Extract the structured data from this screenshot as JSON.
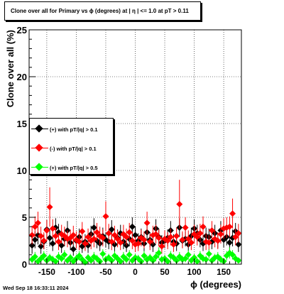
{
  "title": "Clone  over all for Primary vs ϕ (degrees) at |  η | <= 1.0 at pT > 0.11",
  "footer": "Wed Sep 18 16:33:11 2024",
  "chart_data": {
    "type": "scatter",
    "xlabel": "ϕ (degrees)",
    "ylabel": "Clone  over all (%)",
    "xlim": [
      -180,
      180
    ],
    "ylim": [
      0,
      25
    ],
    "x_ticks": [
      -150,
      -100,
      -50,
      0,
      50,
      100,
      150
    ],
    "y_ticks": [
      0,
      5,
      10,
      15,
      20,
      25
    ],
    "grid": true,
    "legend_position": "left-middle",
    "series": [
      {
        "name": "(+) with pT/|q| > 0.1",
        "color": "#000000",
        "x": [
          -175,
          -170,
          -165,
          -160,
          -155,
          -150,
          -145,
          -140,
          -135,
          -130,
          -125,
          -120,
          -115,
          -110,
          -105,
          -100,
          -95,
          -90,
          -85,
          -80,
          -75,
          -70,
          -65,
          -60,
          -55,
          -50,
          -45,
          -40,
          -35,
          -30,
          -25,
          -20,
          -15,
          -10,
          -5,
          0,
          5,
          10,
          15,
          20,
          25,
          30,
          35,
          40,
          45,
          50,
          55,
          60,
          65,
          70,
          75,
          80,
          85,
          90,
          95,
          100,
          105,
          110,
          115,
          120,
          125,
          130,
          135,
          140,
          145,
          150,
          155,
          160,
          165,
          170,
          175
        ],
        "y": [
          2.0,
          2.6,
          3.1,
          1.9,
          2.4,
          3.7,
          2.8,
          2.2,
          3.9,
          3.4,
          2.0,
          2.7,
          3.6,
          2.3,
          1.6,
          2.5,
          2.9,
          1.9,
          2.4,
          2.0,
          3.2,
          3.9,
          2.5,
          2.2,
          3.0,
          2.6,
          2.4,
          3.7,
          2.1,
          2.8,
          3.3,
          2.4,
          2.0,
          2.7,
          4.0,
          3.1,
          2.5,
          2.9,
          2.2,
          3.4,
          2.6,
          2.1,
          3.8,
          2.9,
          2.3,
          2.5,
          2.8,
          3.6,
          2.4,
          2.2,
          3.9,
          2.5,
          2.7,
          2.1,
          3.0,
          3.8,
          3.3,
          2.6,
          2.2,
          3.0,
          2.9,
          2.4,
          3.3,
          2.5,
          3.6,
          2.6,
          2.9,
          2.3,
          2.8,
          3.5,
          2.1
        ],
        "err": [
          0.9,
          0.9,
          1.0,
          0.8,
          0.8,
          1.0,
          0.9,
          0.8,
          1.0,
          0.9,
          0.8,
          0.8,
          1.0,
          0.8,
          0.7,
          0.8,
          0.9,
          0.7,
          0.8,
          0.8,
          0.9,
          1.0,
          0.8,
          0.8,
          0.9,
          0.8,
          0.8,
          1.0,
          0.8,
          0.9,
          0.9,
          0.8,
          0.7,
          0.8,
          1.0,
          0.9,
          0.8,
          0.9,
          0.8,
          0.9,
          0.8,
          0.8,
          1.0,
          0.9,
          0.8,
          0.8,
          0.9,
          1.0,
          0.8,
          0.8,
          1.0,
          0.8,
          0.8,
          0.7,
          0.9,
          1.0,
          0.9,
          0.8,
          0.8,
          0.9,
          0.9,
          0.8,
          0.9,
          0.8,
          1.0,
          0.8,
          0.9,
          0.8,
          0.9,
          0.9,
          0.8
        ]
      },
      {
        "name": "(-) with pT/|q| > 0.1",
        "color": "#ff0000",
        "x": [
          -175,
          -170,
          -165,
          -160,
          -155,
          -150,
          -145,
          -140,
          -135,
          -130,
          -125,
          -120,
          -115,
          -110,
          -105,
          -100,
          -95,
          -90,
          -85,
          -80,
          -75,
          -70,
          -65,
          -60,
          -55,
          -50,
          -45,
          -40,
          -35,
          -30,
          -25,
          -20,
          -15,
          -10,
          -5,
          0,
          5,
          10,
          15,
          20,
          25,
          30,
          35,
          40,
          45,
          50,
          55,
          60,
          65,
          70,
          75,
          80,
          85,
          90,
          95,
          100,
          105,
          110,
          115,
          120,
          125,
          130,
          135,
          140,
          145,
          150,
          155,
          160,
          165,
          170,
          175
        ],
        "y": [
          3.1,
          4.0,
          4.4,
          3.0,
          2.5,
          3.6,
          6.1,
          3.8,
          3.0,
          2.4,
          3.2,
          3.0,
          2.7,
          2.8,
          3.1,
          2.6,
          2.4,
          3.5,
          2.2,
          2.9,
          2.5,
          2.7,
          3.4,
          3.0,
          2.8,
          5.1,
          3.3,
          2.4,
          3.1,
          2.7,
          2.3,
          3.2,
          2.9,
          3.4,
          2.5,
          2.1,
          2.2,
          2.8,
          2.6,
          4.4,
          2.4,
          3.1,
          3.2,
          2.8,
          1.9,
          2.7,
          2.5,
          2.9,
          2.1,
          3.0,
          6.4,
          2.6,
          3.9,
          2.7,
          2.3,
          3.2,
          2.9,
          3.3,
          4.0,
          2.4,
          2.3,
          3.6,
          2.7,
          2.5,
          3.2,
          3.8,
          3.9,
          4.0,
          5.4,
          2.9,
          3.3
        ],
        "err": [
          1.0,
          1.1,
          1.2,
          1.0,
          0.9,
          1.1,
          2.1,
          1.0,
          0.9,
          0.9,
          1.0,
          1.0,
          0.9,
          0.9,
          1.0,
          0.9,
          0.9,
          1.0,
          0.8,
          0.9,
          0.9,
          0.9,
          1.0,
          1.0,
          0.9,
          1.6,
          1.0,
          0.9,
          1.0,
          0.9,
          0.8,
          1.0,
          0.9,
          1.0,
          0.9,
          0.8,
          0.8,
          0.9,
          0.9,
          1.2,
          0.9,
          1.0,
          1.0,
          0.9,
          0.8,
          0.9,
          0.9,
          0.9,
          0.8,
          0.9,
          2.6,
          0.9,
          1.1,
          0.9,
          0.8,
          1.0,
          0.9,
          1.0,
          1.1,
          0.9,
          0.8,
          1.0,
          0.9,
          0.9,
          1.0,
          1.1,
          1.1,
          1.1,
          1.6,
          0.9,
          1.0
        ]
      },
      {
        "name": "(+) with pT/|q| > 0.5",
        "color": "#00ff00",
        "x": [
          -175,
          -170,
          -165,
          -160,
          -155,
          -150,
          -145,
          -140,
          -135,
          -130,
          -125,
          -120,
          -115,
          -110,
          -105,
          -100,
          -95,
          -90,
          -85,
          -80,
          -75,
          -70,
          -65,
          -60,
          -55,
          -50,
          -45,
          -40,
          -35,
          -30,
          -25,
          -20,
          -15,
          -10,
          -5,
          0,
          5,
          10,
          15,
          20,
          25,
          30,
          35,
          40,
          45,
          50,
          55,
          60,
          65,
          70,
          75,
          80,
          85,
          90,
          95,
          100,
          105,
          110,
          115,
          120,
          125,
          130,
          135,
          140,
          145,
          150,
          155,
          160,
          165,
          170,
          175
        ],
        "y": [
          0.5,
          0.8,
          0.3,
          0.6,
          0.9,
          0.4,
          0.7,
          0.5,
          0.3,
          0.8,
          0.6,
          1.0,
          0.4,
          0.7,
          0.3,
          0.6,
          0.9,
          0.5,
          0.2,
          0.7,
          0.4,
          0.8,
          0.6,
          0.3,
          1.1,
          0.5,
          0.7,
          0.4,
          0.9,
          0.6,
          0.3,
          0.8,
          0.5,
          1.0,
          0.4,
          0.7,
          0.6,
          0.3,
          0.9,
          0.5,
          0.7,
          0.4,
          0.8,
          1.2,
          0.5,
          0.6,
          0.3,
          0.9,
          0.7,
          0.4,
          0.8,
          0.5,
          0.6,
          1.0,
          0.4,
          0.7,
          0.3,
          0.9,
          0.6,
          0.5,
          1.1,
          0.4,
          0.7,
          0.8,
          0.5,
          0.3,
          0.9,
          1.2,
          1.0,
          0.6,
          0.4
        ],
        "err": [
          0.4,
          0.5,
          0.3,
          0.4,
          0.5,
          0.3,
          0.4,
          0.4,
          0.3,
          0.5,
          0.4,
          0.5,
          0.3,
          0.4,
          0.3,
          0.4,
          0.5,
          0.4,
          0.2,
          0.4,
          0.3,
          0.5,
          0.4,
          0.3,
          0.5,
          0.4,
          0.4,
          0.3,
          0.5,
          0.4,
          0.3,
          0.5,
          0.4,
          0.5,
          0.3,
          0.4,
          0.4,
          0.3,
          0.5,
          0.4,
          0.4,
          0.3,
          0.5,
          0.6,
          0.4,
          0.4,
          0.3,
          0.5,
          0.4,
          0.3,
          0.5,
          0.4,
          0.4,
          0.5,
          0.3,
          0.4,
          0.3,
          0.5,
          0.4,
          0.4,
          0.5,
          0.3,
          0.4,
          0.5,
          0.4,
          0.3,
          0.5,
          0.6,
          0.5,
          0.4,
          0.3
        ]
      }
    ]
  }
}
